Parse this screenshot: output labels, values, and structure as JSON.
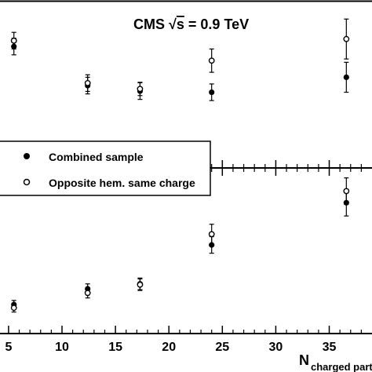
{
  "chart_data": [
    {
      "type": "scatter",
      "panel": "top",
      "title": "CMS √s = 0.9  TeV",
      "title_parts": {
        "prefix": "CMS ",
        "radical": "√",
        "var": "s",
        "suffix": " = 0.9  TeV"
      },
      "xlim": [
        4.2,
        39.0
      ],
      "ylim": [
        0.0,
        1.0
      ],
      "legend": {
        "placement": "bottom-left",
        "entries": [
          {
            "label": "Combined sample",
            "marker": "filled-circle"
          },
          {
            "label": "Opposite hem. same charge",
            "marker": "open-circle"
          }
        ]
      },
      "series": [
        {
          "name": "Combined sample",
          "marker": "filled",
          "points": [
            {
              "x": 5.5,
              "y": 0.73,
              "err": 0.05
            },
            {
              "x": 12.4,
              "y": 0.495,
              "err": 0.05
            },
            {
              "x": 17.3,
              "y": 0.462,
              "err": 0.05
            },
            {
              "x": 24.0,
              "y": 0.455,
              "err": 0.05
            },
            {
              "x": 36.6,
              "y": 0.545,
              "err": 0.09
            }
          ]
        },
        {
          "name": "Opposite hem. same charge",
          "marker": "open",
          "points": [
            {
              "x": 5.5,
              "y": 0.765,
              "err": 0.05
            },
            {
              "x": 12.4,
              "y": 0.51,
              "err": 0.05
            },
            {
              "x": 17.3,
              "y": 0.475,
              "err": 0.04
            },
            {
              "x": 24.0,
              "y": 0.645,
              "err": 0.07
            },
            {
              "x": 36.6,
              "y": 0.775,
              "err": 0.12
            }
          ]
        }
      ]
    },
    {
      "type": "scatter",
      "panel": "bottom",
      "xlabel": "N",
      "xlabel_sub": "charged part",
      "xlim": [
        4.2,
        39.0
      ],
      "ylim": [
        0.0,
        1.0
      ],
      "x_ticks": [
        5,
        10,
        15,
        20,
        25,
        30,
        35
      ],
      "series": [
        {
          "name": "Combined sample",
          "marker": "filled",
          "points": [
            {
              "x": 5.5,
              "y": 0.175,
              "err": 0.025
            },
            {
              "x": 12.4,
              "y": 0.27,
              "err": 0.03
            },
            {
              "x": 17.3,
              "y": 0.3,
              "err": 0.035
            },
            {
              "x": 24.0,
              "y": 0.535,
              "err": 0.05
            },
            {
              "x": 36.6,
              "y": 0.79,
              "err": 0.08
            }
          ]
        },
        {
          "name": "Opposite hem. same charge",
          "marker": "open",
          "points": [
            {
              "x": 5.5,
              "y": 0.155,
              "err": 0.025
            },
            {
              "x": 12.4,
              "y": 0.245,
              "err": 0.03
            },
            {
              "x": 17.3,
              "y": 0.295,
              "err": 0.035
            },
            {
              "x": 24.0,
              "y": 0.6,
              "err": 0.06
            },
            {
              "x": 36.6,
              "y": 0.86,
              "err": 0.08
            }
          ]
        }
      ]
    }
  ]
}
